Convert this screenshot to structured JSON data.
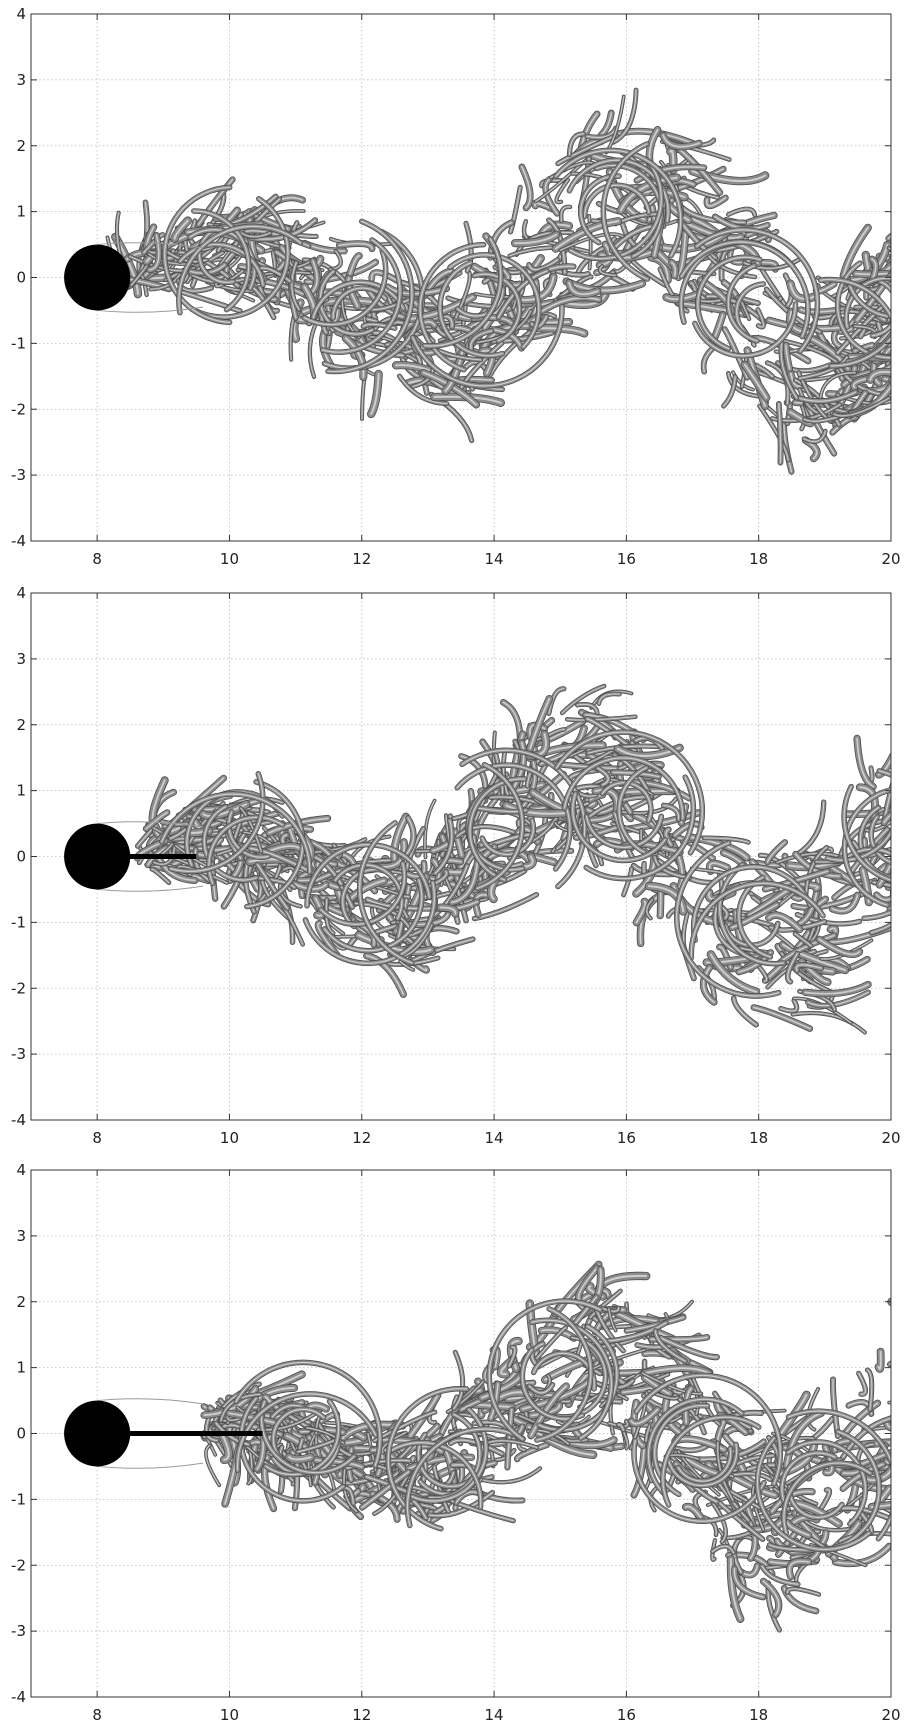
{
  "figure": {
    "panels": [
      {
        "x_ticks": [
          "8",
          "10",
          "12",
          "14",
          "16",
          "18",
          "20"
        ],
        "y_ticks": [
          "4",
          "3",
          "2",
          "1",
          "0",
          "-1",
          "-2",
          "-3",
          "-4"
        ],
        "plate_end_x": 8.0
      },
      {
        "x_ticks": [
          "8",
          "10",
          "12",
          "14",
          "16",
          "18",
          "20"
        ],
        "y_ticks": [
          "4",
          "3",
          "2",
          "1",
          "0",
          "-1",
          "-2",
          "-3",
          "-4"
        ],
        "plate_end_x": 9.5
      },
      {
        "x_ticks": [
          "8",
          "10",
          "12",
          "14",
          "16",
          "18",
          "20"
        ],
        "y_ticks": [
          "4",
          "3",
          "2",
          "1",
          "0",
          "-1",
          "-2",
          "-3",
          "-4"
        ],
        "plate_end_x": 10.5
      }
    ]
  },
  "chart_data": [
    {
      "type": "other",
      "xlim": [
        7,
        20
      ],
      "ylim": [
        -4,
        4
      ],
      "grid": true,
      "cylinder": {
        "center": [
          8,
          0
        ],
        "diameter": 1
      },
      "splitter_plate_end_x": null
    },
    {
      "type": "other",
      "xlim": [
        7,
        20
      ],
      "ylim": [
        -4,
        4
      ],
      "grid": true,
      "cylinder": {
        "center": [
          8,
          0
        ],
        "diameter": 1
      },
      "splitter_plate_end_x": 9.5
    },
    {
      "type": "other",
      "xlim": [
        7,
        20
      ],
      "ylim": [
        -4,
        4
      ],
      "grid": true,
      "cylinder": {
        "center": [
          8,
          0
        ],
        "diameter": 1
      },
      "splitter_plate_end_x": 10.5
    }
  ],
  "colors": {
    "wake": "#8c8c8c",
    "wake_dark": "#4d4d4d",
    "wake_light": "#cfcfcf",
    "body": "#000000",
    "grid": "#b8b8b8"
  }
}
